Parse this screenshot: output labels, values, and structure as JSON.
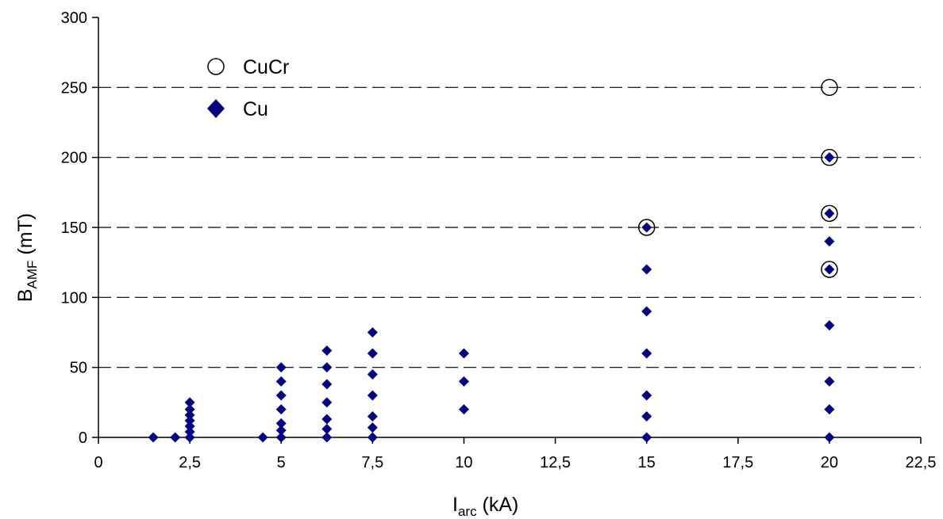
{
  "chart_data": {
    "type": "scatter",
    "xlabel": {
      "main": "I",
      "sub": "arc",
      "unit": " (kA)"
    },
    "ylabel": {
      "main": "B",
      "sub": "AMF",
      "unit": " (mT)"
    },
    "xlim": [
      0,
      22.5
    ],
    "ylim": [
      0,
      300
    ],
    "x_ticks": [
      {
        "value": 0,
        "label": "0"
      },
      {
        "value": 2.5,
        "label": "2,5"
      },
      {
        "value": 5,
        "label": "5"
      },
      {
        "value": 7.5,
        "label": "7,5"
      },
      {
        "value": 10,
        "label": "10"
      },
      {
        "value": 12.5,
        "label": "12,5"
      },
      {
        "value": 15,
        "label": "15"
      },
      {
        "value": 17.5,
        "label": "17,5"
      },
      {
        "value": 20,
        "label": "20"
      },
      {
        "value": 22.5,
        "label": "22,5"
      }
    ],
    "y_ticks": [
      {
        "value": 0,
        "label": "0"
      },
      {
        "value": 50,
        "label": "50"
      },
      {
        "value": 100,
        "label": "100"
      },
      {
        "value": 150,
        "label": "150"
      },
      {
        "value": 200,
        "label": "200"
      },
      {
        "value": 250,
        "label": "250"
      },
      {
        "value": 300,
        "label": "300"
      }
    ],
    "grid": "horizontal-dashed",
    "legend_position": "top-left",
    "series": [
      {
        "name": "CuCr",
        "marker": "open-circle",
        "color": "#000000",
        "points": [
          {
            "x": 15,
            "y": 150
          },
          {
            "x": 20,
            "y": 250
          },
          {
            "x": 20,
            "y": 200
          },
          {
            "x": 20,
            "y": 160
          },
          {
            "x": 20,
            "y": 120
          }
        ]
      },
      {
        "name": "Cu",
        "marker": "filled-diamond",
        "color": "#000080",
        "points": [
          {
            "x": 1.5,
            "y": 0
          },
          {
            "x": 2.1,
            "y": 0
          },
          {
            "x": 2.5,
            "y": 0
          },
          {
            "x": 2.5,
            "y": 4
          },
          {
            "x": 2.5,
            "y": 8
          },
          {
            "x": 2.5,
            "y": 12
          },
          {
            "x": 2.5,
            "y": 16
          },
          {
            "x": 2.5,
            "y": 20
          },
          {
            "x": 2.5,
            "y": 25
          },
          {
            "x": 4.5,
            "y": 0
          },
          {
            "x": 5,
            "y": 0
          },
          {
            "x": 5,
            "y": 5
          },
          {
            "x": 5,
            "y": 10
          },
          {
            "x": 5,
            "y": 20
          },
          {
            "x": 5,
            "y": 30
          },
          {
            "x": 5,
            "y": 40
          },
          {
            "x": 5,
            "y": 50
          },
          {
            "x": 6.25,
            "y": 0
          },
          {
            "x": 6.25,
            "y": 6
          },
          {
            "x": 6.25,
            "y": 13
          },
          {
            "x": 6.25,
            "y": 25
          },
          {
            "x": 6.25,
            "y": 38
          },
          {
            "x": 6.25,
            "y": 50
          },
          {
            "x": 6.25,
            "y": 62
          },
          {
            "x": 7.5,
            "y": 0
          },
          {
            "x": 7.5,
            "y": 7
          },
          {
            "x": 7.5,
            "y": 15
          },
          {
            "x": 7.5,
            "y": 30
          },
          {
            "x": 7.5,
            "y": 45
          },
          {
            "x": 7.5,
            "y": 60
          },
          {
            "x": 7.5,
            "y": 75
          },
          {
            "x": 10,
            "y": 20
          },
          {
            "x": 10,
            "y": 40
          },
          {
            "x": 10,
            "y": 60
          },
          {
            "x": 15,
            "y": 0
          },
          {
            "x": 15,
            "y": 15
          },
          {
            "x": 15,
            "y": 30
          },
          {
            "x": 15,
            "y": 60
          },
          {
            "x": 15,
            "y": 90
          },
          {
            "x": 15,
            "y": 120
          },
          {
            "x": 15,
            "y": 150
          },
          {
            "x": 20,
            "y": 0
          },
          {
            "x": 20,
            "y": 20
          },
          {
            "x": 20,
            "y": 40
          },
          {
            "x": 20,
            "y": 80
          },
          {
            "x": 20,
            "y": 120
          },
          {
            "x": 20,
            "y": 140
          },
          {
            "x": 20,
            "y": 160
          },
          {
            "x": 20,
            "y": 200
          }
        ]
      }
    ]
  }
}
